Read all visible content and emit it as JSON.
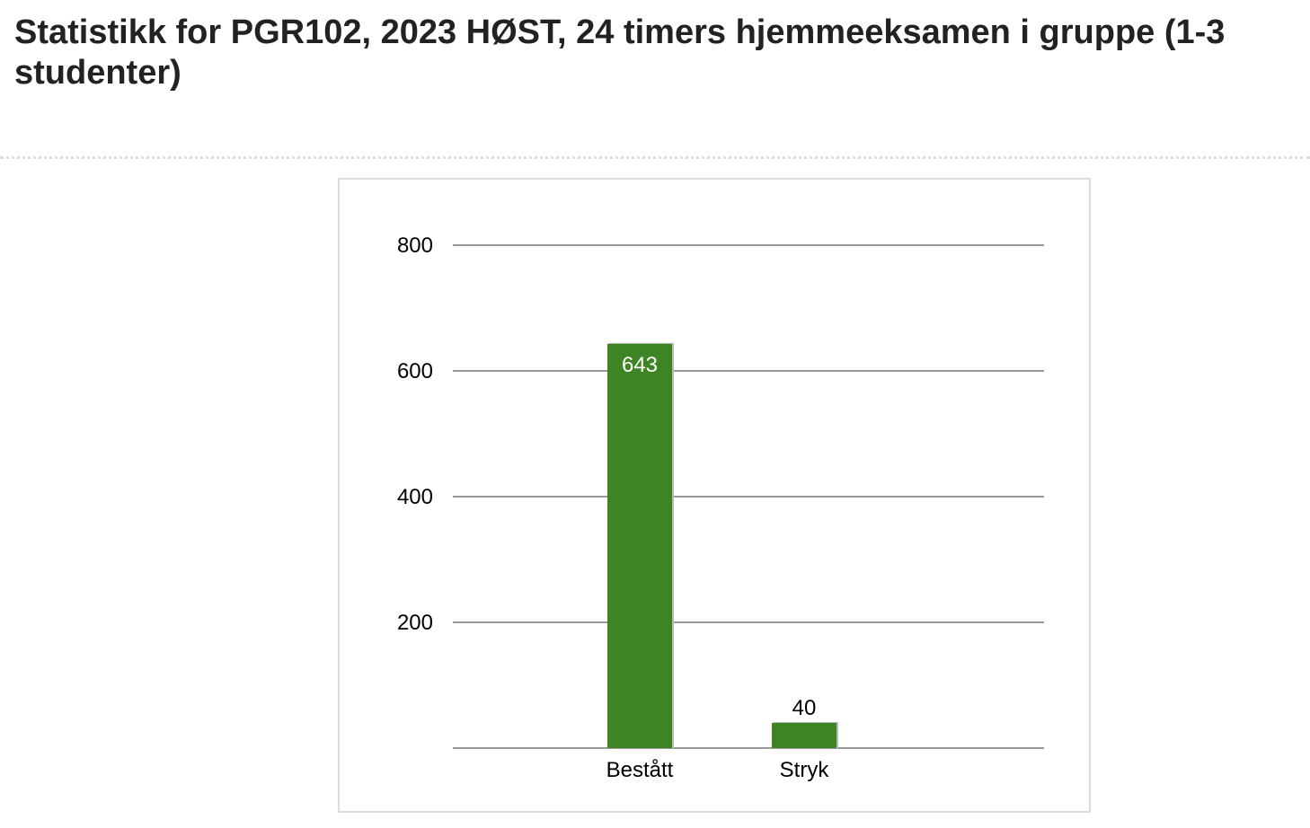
{
  "page": {
    "title": "Statistikk for PGR102, 2023 HØST, 24 timers hjemmeeksamen i gruppe (1-3 studenter)"
  },
  "chart_data": {
    "type": "bar",
    "title": "",
    "xlabel": "",
    "ylabel": "",
    "categories": [
      "Bestått",
      "Stryk"
    ],
    "values": [
      643,
      40
    ],
    "ylim": [
      0,
      800
    ],
    "yticks": [
      200,
      400,
      600,
      800
    ],
    "grid": true,
    "legend": "none",
    "bar_color": "#3d8425",
    "label_colors": {
      "inside": "#ffffff",
      "above": "#000000"
    }
  }
}
